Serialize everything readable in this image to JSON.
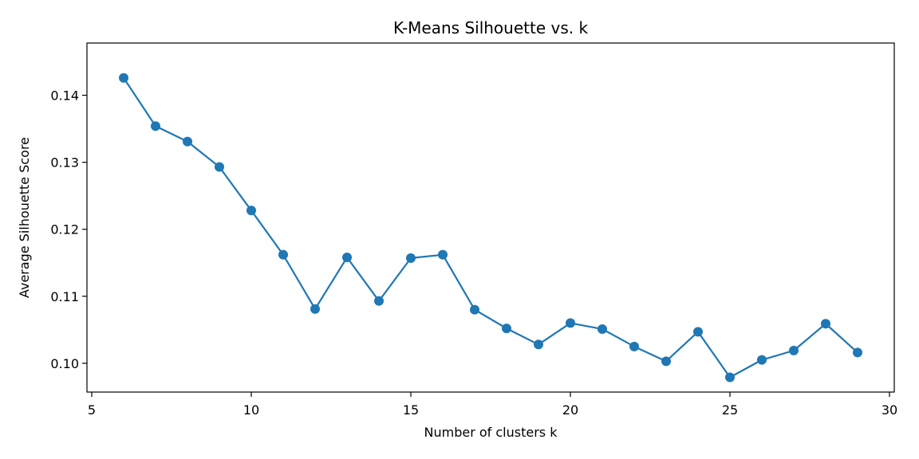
{
  "chart_data": {
    "type": "line",
    "title": "K-Means Silhouette vs. k",
    "xlabel": "Number of clusters k",
    "ylabel": "Average Silhouette Score",
    "xlim": [
      4.85,
      30.15
    ],
    "ylim": [
      0.0957,
      0.1478
    ],
    "xticks": [
      5,
      10,
      15,
      20,
      25,
      30
    ],
    "yticks": [
      0.1,
      0.11,
      0.12,
      0.13,
      0.14
    ],
    "ytick_labels": [
      "0.10",
      "0.11",
      "0.12",
      "0.13",
      "0.14"
    ],
    "grid": false,
    "color": "#1f77b4",
    "series": [
      {
        "x": [
          6,
          7,
          8,
          9,
          10,
          11,
          12,
          13,
          14,
          15,
          16,
          17,
          18,
          19,
          20,
          21,
          22,
          23,
          24,
          25,
          26,
          27,
          28,
          29
        ],
        "values": [
          0.1426,
          0.1354,
          0.1331,
          0.1293,
          0.1228,
          0.1162,
          0.1081,
          0.1158,
          0.1093,
          0.1157,
          0.1162,
          0.108,
          0.1052,
          0.1028,
          0.106,
          0.1051,
          0.1025,
          0.1003,
          0.1047,
          0.0979,
          0.1005,
          0.1019,
          0.1059,
          0.1016
        ]
      }
    ]
  }
}
